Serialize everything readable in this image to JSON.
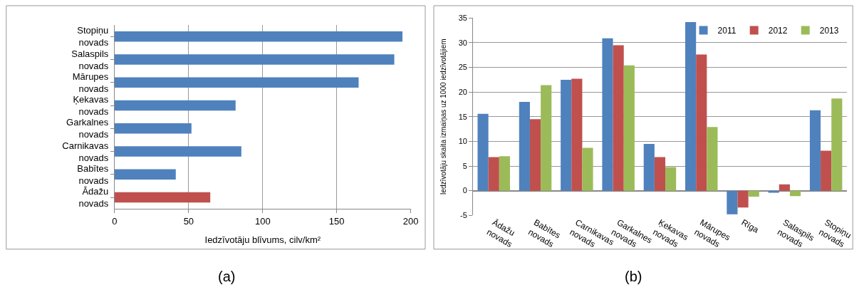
{
  "chart_data": [
    {
      "type": "bar",
      "orientation": "horizontal",
      "xlabel": "Iedzīvotāju blīvums, cilv/km²",
      "categories": [
        "Stopiņu novads",
        "Salaspils novads",
        "Mārupes novads",
        "Ķekavas novads",
        "Garkalnes novads",
        "Carnikavas novads",
        "Babītes novads",
        "Ādažu novads"
      ],
      "values": [
        194.4,
        188.9,
        164.8,
        81.7,
        51.9,
        85.6,
        41.3,
        64.6
      ],
      "colors": [
        "#4f81bd",
        "#4f81bd",
        "#4f81bd",
        "#4f81bd",
        "#4f81bd",
        "#4f81bd",
        "#4f81bd",
        "#c0504d"
      ],
      "xlim": [
        0,
        200
      ],
      "xticks": [
        0,
        50,
        100,
        150,
        200
      ],
      "grid": "x",
      "legend": false,
      "annotations": [
        "(a)"
      ]
    },
    {
      "type": "bar",
      "ylabel": "Iedzīvotāju skaita izmaiņas uz 1000 iedzīvotājiem",
      "categories": [
        "Ādažu novads",
        "Babītes novads",
        "Carnikavas novads",
        "Garkalnes novads",
        "Ķekavas novads",
        "Mārupes novads",
        "Rīga",
        "Salaspils novads",
        "Stopiņu novads"
      ],
      "series": [
        {
          "name": "2011",
          "color": "#4f81bd",
          "values": [
            15.6,
            18.0,
            22.5,
            30.9,
            9.5,
            34.2,
            -4.8,
            -0.4,
            16.3
          ]
        },
        {
          "name": "2012",
          "color": "#c0504d",
          "values": [
            6.8,
            14.5,
            22.7,
            29.5,
            6.8,
            27.6,
            -3.4,
            1.3,
            8.1
          ]
        },
        {
          "name": "2013",
          "color": "#9bbb59",
          "values": [
            7.0,
            21.4,
            8.7,
            25.4,
            4.8,
            12.9,
            -1.2,
            -1.1,
            18.7
          ]
        }
      ],
      "ylim": [
        -5,
        35
      ],
      "yticks": [
        -5,
        0,
        5,
        10,
        15,
        20,
        25,
        30,
        35
      ],
      "grid": "y",
      "legend": "top right",
      "annotations": [
        "(b)"
      ]
    }
  ]
}
